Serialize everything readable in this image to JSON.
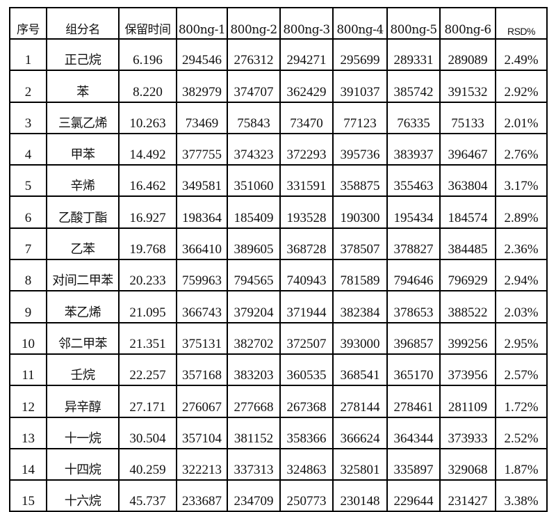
{
  "table": {
    "headers": [
      "序号",
      "组分名",
      "保留时间",
      "800ng-1",
      "800ng-2",
      "800ng-3",
      "800ng-4",
      "800ng-5",
      "800ng-6",
      "RSD%"
    ],
    "rows": [
      [
        "1",
        "正己烷",
        "6.196",
        "294546",
        "276312",
        "294271",
        "295699",
        "289331",
        "289089",
        "2.49%"
      ],
      [
        "2",
        "苯",
        "8.220",
        "382979",
        "374707",
        "362429",
        "391037",
        "385742",
        "391532",
        "2.92%"
      ],
      [
        "3",
        "三氯乙烯",
        "10.263",
        "73469",
        "75843",
        "73470",
        "77123",
        "76335",
        "75133",
        "2.01%"
      ],
      [
        "4",
        "甲苯",
        "14.492",
        "377755",
        "374323",
        "372293",
        "395736",
        "383937",
        "396467",
        "2.76%"
      ],
      [
        "5",
        "辛烯",
        "16.462",
        "349581",
        "351060",
        "331591",
        "358875",
        "355463",
        "363804",
        "3.17%"
      ],
      [
        "6",
        "乙酸丁酯",
        "16.927",
        "198364",
        "185409",
        "193528",
        "190300",
        "195434",
        "184574",
        "2.89%"
      ],
      [
        "7",
        "乙苯",
        "19.768",
        "366410",
        "389605",
        "368728",
        "378507",
        "378827",
        "384485",
        "2.36%"
      ],
      [
        "8",
        "对间二甲苯",
        "20.233",
        "759963",
        "794565",
        "740943",
        "781589",
        "794646",
        "796929",
        "2.94%"
      ],
      [
        "9",
        "苯乙烯",
        "21.095",
        "366743",
        "379204",
        "371944",
        "382384",
        "378653",
        "388522",
        "2.03%"
      ],
      [
        "10",
        "邻二甲苯",
        "21.351",
        "375131",
        "382702",
        "372507",
        "393000",
        "396857",
        "399256",
        "2.95%"
      ],
      [
        "11",
        "壬烷",
        "22.257",
        "357168",
        "383203",
        "360535",
        "368541",
        "365170",
        "373956",
        "2.57%"
      ],
      [
        "12",
        "异辛醇",
        "27.171",
        "276067",
        "277668",
        "267368",
        "278144",
        "278461",
        "281109",
        "1.72%"
      ],
      [
        "13",
        "十一烷",
        "30.504",
        "357104",
        "381152",
        "358366",
        "366624",
        "364344",
        "373933",
        "2.52%"
      ],
      [
        "14",
        "十四烷",
        "40.259",
        "322213",
        "337313",
        "324863",
        "325801",
        "335897",
        "329068",
        "1.87%"
      ],
      [
        "15",
        "十六烷",
        "45.737",
        "233687",
        "234709",
        "250773",
        "230148",
        "229644",
        "231427",
        "3.38%"
      ]
    ]
  }
}
